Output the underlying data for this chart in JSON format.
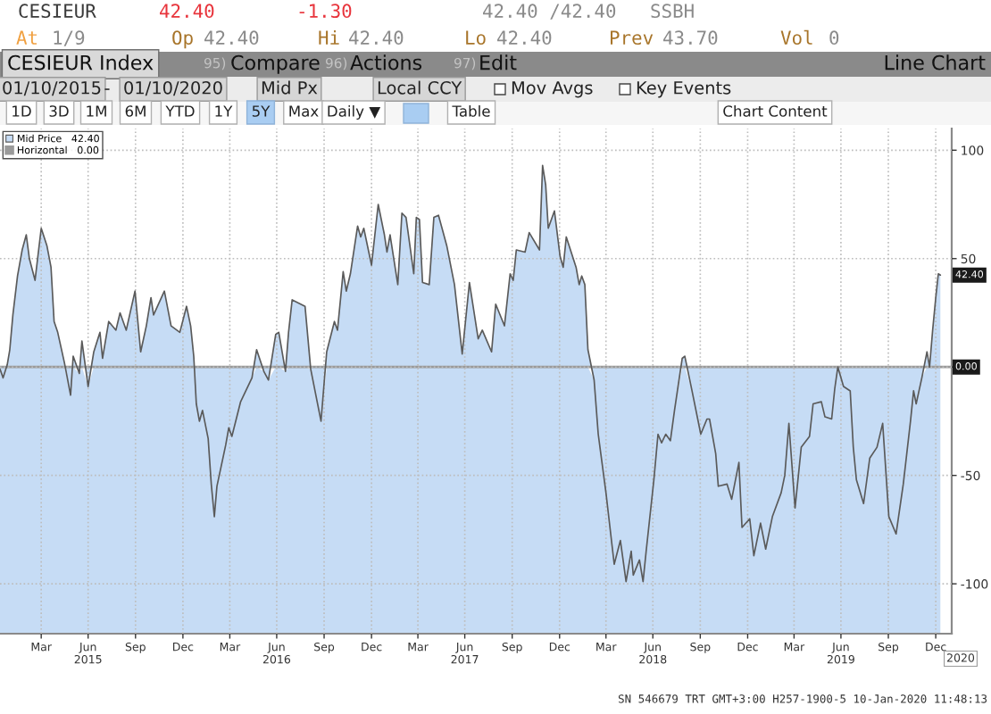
{
  "chart_data": {
    "type": "area",
    "title": "CESIEUR Index",
    "x": [
      "2015-01-10",
      "2015-01-16",
      "2015-01-24",
      "2015-01-29",
      "2015-02-04",
      "2015-02-13",
      "2015-02-22",
      "2015-03-02",
      "2015-03-08",
      "2015-03-19",
      "2015-03-31",
      "2015-04-11",
      "2015-04-19",
      "2015-04-25",
      "2015-05-02",
      "2015-05-15",
      "2015-05-27",
      "2015-06-01",
      "2015-06-13",
      "2015-06-18",
      "2015-06-30",
      "2015-07-11",
      "2015-07-23",
      "2015-07-28",
      "2015-08-09",
      "2015-08-23",
      "2015-08-31",
      "2015-09-12",
      "2015-09-29",
      "2015-10-10",
      "2015-10-21",
      "2015-10-30",
      "2015-11-04",
      "2015-11-25",
      "2015-12-08",
      "2015-12-25",
      "2016-01-07",
      "2016-01-15",
      "2016-01-21",
      "2016-01-26",
      "2016-02-01",
      "2016-02-07",
      "2016-02-18",
      "2016-02-24",
      "2016-03-01",
      "2016-03-06",
      "2016-03-23",
      "2016-03-29",
      "2016-04-04",
      "2016-04-21",
      "2016-05-13",
      "2016-05-22",
      "2016-06-05",
      "2016-06-14",
      "2016-06-28",
      "2016-07-04",
      "2016-07-17",
      "2016-07-23",
      "2016-07-30",
      "2016-08-24",
      "2016-09-04",
      "2016-09-24",
      "2016-10-05",
      "2016-10-20",
      "2016-10-26",
      "2016-11-06",
      "2016-11-12",
      "2016-11-20",
      "2016-12-04",
      "2016-12-10",
      "2016-12-16",
      "2016-12-31",
      "2017-01-13",
      "2017-01-25",
      "2017-01-30",
      "2017-02-05",
      "2017-02-20",
      "2017-02-28",
      "2017-03-08",
      "2017-03-23",
      "2017-03-28",
      "2017-04-03",
      "2017-04-09",
      "2017-04-22",
      "2017-05-01",
      "2017-05-10",
      "2017-05-26",
      "2017-06-10",
      "2017-06-25",
      "2017-07-09",
      "2017-07-26",
      "2017-08-03",
      "2017-08-21",
      "2017-08-29",
      "2017-09-15",
      "2017-09-26",
      "2017-10-02",
      "2017-10-08",
      "2017-10-25",
      "2017-11-02",
      "2017-11-22",
      "2017-11-28",
      "2017-12-04",
      "2017-12-09",
      "2017-12-21",
      "2018-01-01",
      "2018-01-07",
      "2018-01-13",
      "2018-02-01",
      "2018-02-07",
      "2018-02-12",
      "2018-02-18",
      "2018-02-24",
      "2018-03-08",
      "2018-03-16",
      "2018-03-31",
      "2018-04-16",
      "2018-04-28",
      "2018-05-09",
      "2018-05-19",
      "2018-05-23",
      "2018-06-04",
      "2018-06-11",
      "2018-06-17",
      "2018-07-02",
      "2018-07-10",
      "2018-07-17",
      "2018-07-25",
      "2018-08-03",
      "2018-08-11",
      "2018-08-26",
      "2018-08-31",
      "2018-09-14",
      "2018-10-01",
      "2018-10-13",
      "2018-10-18",
      "2018-10-30",
      "2018-11-04",
      "2018-11-21",
      "2018-11-30",
      "2018-12-14",
      "2018-12-20",
      "2019-01-04",
      "2019-01-12",
      "2019-01-25",
      "2019-02-04",
      "2019-02-17",
      "2019-03-06",
      "2019-03-13",
      "2019-03-21",
      "2019-04-02",
      "2019-04-14",
      "2019-04-30",
      "2019-05-07",
      "2019-05-23",
      "2019-05-30",
      "2019-06-12",
      "2019-06-18",
      "2019-06-24",
      "2019-07-05",
      "2019-07-18",
      "2019-07-24",
      "2019-07-30",
      "2019-08-13",
      "2019-08-25",
      "2019-09-08",
      "2019-09-19",
      "2019-10-01",
      "2019-10-15",
      "2019-10-29",
      "2019-11-12",
      "2019-11-18",
      "2019-11-23",
      "2019-12-04",
      "2019-12-14",
      "2019-12-19",
      "2019-12-25",
      "2019-12-31",
      "2020-01-05",
      "2020-01-09"
    ],
    "series": [
      {
        "name": "Mid Price   42.40",
        "color": "#c6dcf5",
        "values": [
          -1,
          -5,
          1,
          8,
          24,
          42,
          54,
          61,
          50,
          40,
          64,
          56,
          46,
          21,
          16,
          2,
          -13,
          5,
          -3,
          12,
          -9,
          7,
          16,
          4,
          21,
          17,
          25,
          17,
          35,
          7,
          19,
          32,
          24,
          35,
          19,
          16,
          28,
          19,
          5,
          -17,
          -25,
          -20,
          -33,
          -54,
          -69,
          -55,
          -36,
          -28,
          -32,
          -16,
          -5,
          8,
          -2,
          -6,
          15,
          16,
          -2,
          16,
          31,
          28,
          -1,
          -25,
          7,
          21,
          17,
          44,
          35,
          43,
          65,
          60,
          64,
          47,
          75,
          61,
          53,
          61,
          38,
          71,
          69,
          43,
          69,
          68,
          39,
          38,
          69,
          70,
          56,
          38,
          6,
          39,
          13,
          17,
          7,
          29,
          19,
          43,
          40,
          54,
          53,
          62,
          54,
          93,
          84,
          64,
          72,
          51,
          46,
          60,
          46,
          38,
          42,
          38,
          8,
          -6,
          -31,
          -58,
          -91,
          -80,
          -99,
          -85,
          -96,
          -89,
          -99,
          -85,
          -52,
          -31,
          -35,
          -31,
          -34,
          -20,
          4,
          5,
          -11,
          -31,
          -24,
          -24,
          -40,
          -55,
          -54,
          -61,
          -44,
          -74,
          -70,
          -87,
          -72,
          -84,
          -69,
          -58,
          -50,
          -26,
          -65,
          -37,
          -32,
          -17,
          -16,
          -23,
          -24,
          -10,
          0,
          -9,
          -11,
          -37,
          -52,
          -63,
          -42,
          -37,
          -26,
          -69,
          -77,
          -54,
          -25,
          -11,
          -17,
          -5,
          7,
          0,
          17,
          32,
          43,
          42.4
        ]
      }
    ],
    "xlim": [
      "2015-01-10",
      "2020-01-31"
    ],
    "ylim": [
      -123,
      110
    ],
    "xticks": [
      {
        "value": "2015-03-31",
        "label": "Mar"
      },
      {
        "value": "2015-06-30",
        "label": "Jun\n2015"
      },
      {
        "value": "2015-09-30",
        "label": "Sep"
      },
      {
        "value": "2015-12-31",
        "label": "Dec"
      },
      {
        "value": "2016-03-31",
        "label": "Mar"
      },
      {
        "value": "2016-06-30",
        "label": "Jun\n2016"
      },
      {
        "value": "2016-09-30",
        "label": "Sep"
      },
      {
        "value": "2016-12-31",
        "label": "Dec"
      },
      {
        "value": "2017-03-31",
        "label": "Mar"
      },
      {
        "value": "2017-06-30",
        "label": "Jun\n2017"
      },
      {
        "value": "2017-09-30",
        "label": "Sep"
      },
      {
        "value": "2017-12-31",
        "label": "Dec"
      },
      {
        "value": "2018-03-31",
        "label": "Mar"
      },
      {
        "value": "2018-06-30",
        "label": "Jun\n2018"
      },
      {
        "value": "2018-09-30",
        "label": "Sep"
      },
      {
        "value": "2018-12-31",
        "label": "Dec"
      },
      {
        "value": "2019-03-31",
        "label": "Mar"
      },
      {
        "value": "2019-06-30",
        "label": "Jun\n2019"
      },
      {
        "value": "2019-09-30",
        "label": "Sep"
      },
      {
        "value": "2019-12-31",
        "label": "Dec"
      }
    ],
    "yticks": [
      -100,
      -50,
      {
        "value": 0,
        "label": null
      },
      50,
      100
    ],
    "ref_lines": [
      {
        "axis": "y",
        "value": 0,
        "label": "Horizontal   0.00",
        "color": "#9a9a9a"
      }
    ],
    "grid": true,
    "legend": "top left",
    "annotations": [
      "CESIEUR",
      "42.40",
      "-1.30",
      "42.40 /42.40",
      "SSBH",
      "At",
      "1/9",
      "Op",
      "42.40",
      "Hi",
      "42.40",
      "Lo",
      "42.40",
      "Prev",
      "43.70",
      "Vol",
      "0",
      "95)",
      "Compare",
      "96)",
      "Actions",
      "97)",
      "Edit",
      "Line Chart",
      "01/10/2015",
      "-",
      "01/10/2020",
      "Mid Px",
      "Local CCY",
      "Mov Avgs",
      "Key Events",
      "1D",
      "3D",
      "1M",
      "6M",
      "YTD",
      "1Y",
      "5Y",
      "Max",
      "Daily ▼",
      "Table",
      "Chart Content",
      "2020",
      "SN 546679 TRT GMT+3:00 H257-1900-5 10-Jan-2020 11:48:13",
      {
        "text": "42.40",
        "x": "2020-01-09",
        "y": 42.4
      },
      {
        "text": "0.00",
        "x": "2020-01-09",
        "y": 0
      }
    ]
  }
}
